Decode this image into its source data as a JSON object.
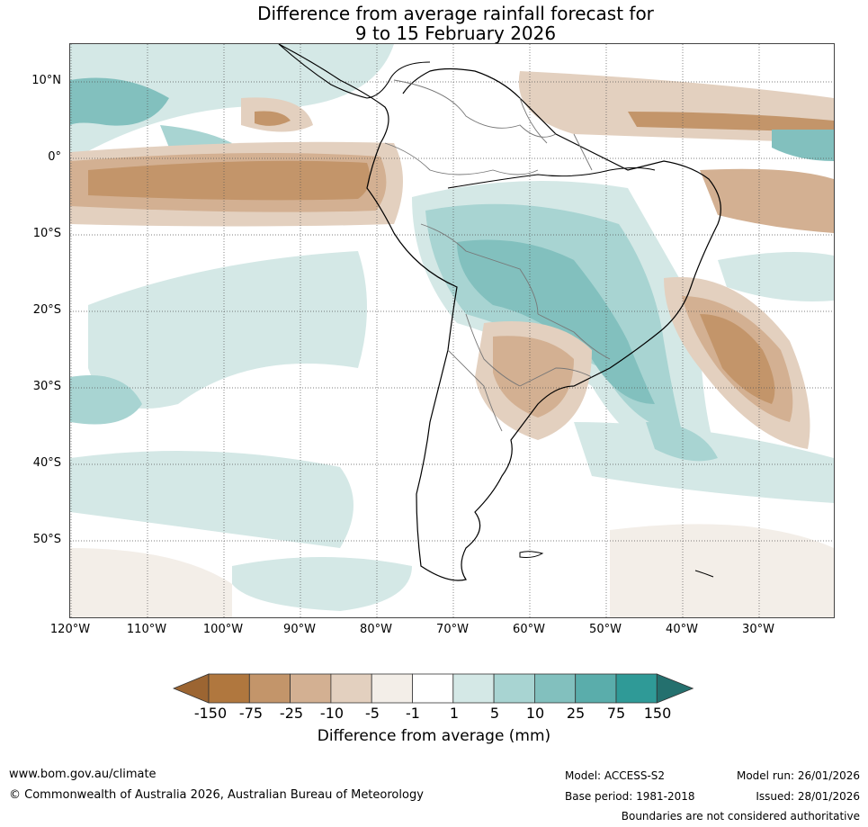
{
  "title": {
    "line1": "Difference from average rainfall forecast for",
    "line2": "9 to 15 February 2026"
  },
  "latitude_labels": [
    "10°N",
    "0°",
    "10°S",
    "20°S",
    "30°S",
    "40°S",
    "50°S"
  ],
  "longitude_labels": [
    "120°W",
    "110°W",
    "100°W",
    "90°W",
    "80°W",
    "70°W",
    "60°W",
    "50°W",
    "40°W",
    "30°W"
  ],
  "legend": {
    "title": "Difference from average (mm)",
    "ticks": [
      "-150",
      "-75",
      "-25",
      "-10",
      "-5",
      "-1",
      "1",
      "5",
      "10",
      "25",
      "75",
      "150"
    ],
    "colors": [
      "#9c6532",
      "#b0773e",
      "#c3956a",
      "#d3b092",
      "#e3d0bf",
      "#f3eee8",
      "#ffffff",
      "#d4e8e6",
      "#a8d4d2",
      "#82c0be",
      "#5aadab",
      "#2f9a97",
      "#24706e"
    ]
  },
  "footer": {
    "website": "www.bom.gov.au/climate",
    "copyright": "© Commonwealth of Australia 2026, Australian Bureau of Meteorology",
    "model": "Model: ACCESS-S2",
    "base_period": "Base period: 1981-2018",
    "model_run": "Model run: 26/01/2026",
    "issued": "Issued: 28/01/2026",
    "disclaimer": "Boundaries are not considered authoritative"
  }
}
